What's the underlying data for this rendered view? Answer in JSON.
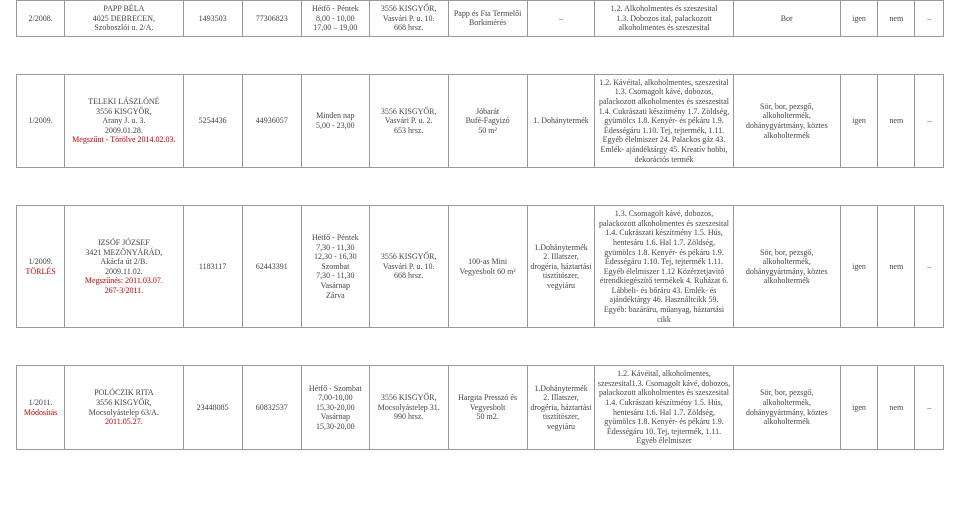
{
  "rows": [
    {
      "id": "2/2008.",
      "name": "PAPP BÉLA\n4025 DEBRECEN,\nSzoboszlói u. 2/A.",
      "n1": "1493503",
      "n2": "77306823",
      "hours": "Hétfő - Péntek\n8,00 - 10,00\n17,00 – 19,00",
      "loc": "3556 KISGYŐR,\nVasvári P. u. 10.\n668 hrsz.",
      "shop": "Papp és Fia Termelői\nBorkimérés",
      "prim": "–",
      "cat": "1.2. Alkoholmentes és szeszesital\n1.3. Dobozos ital, palackozott alkoholmentes és szeszesital",
      "prod": "Bor",
      "yn1": "igen",
      "yn2": "nem",
      "last": "–"
    },
    {
      "id": "1/2009.",
      "name_html": "TELEKI LÁSZLÓNÉ<br>3556 KISGYŐR,<br>Arany J. u. 3.<br>2009.01.28.<br><span class='red'>Megszűnt - Törölve 2014.02.03.</span>",
      "n1": "5254436",
      "n2": "44936057",
      "hours": "Minden nap\n5,00 - 23,00",
      "loc": "3556 KISGYŐR,\nVasvári P. u. 2.\n653 hrsz.",
      "shop": "Jóbarát\nBufé-Fagyizó\n50 m²",
      "prim": "1. Dohánytermék",
      "cat": "1.2. Kávéital, alkoholmentes, szeszesital 1.3. Csomagolt kávé, dobozos, palackozott alkoholmentes és szeszesital 1.4. Cukrászati készítmény 1.7. Zöldség, gyümölcs 1.8. Kenyér- és pékáru 1.9. Édességáru  1.10. Tej, tejtermék, 1.11. Egyéb élelmiszer  24. Palackos gáz  43. Emlék- ajándéktárgy  45. Kreatív hobbi, dekorációs termék",
      "prod": "Sör, bor, pezsgő, alkoholtermék, dohánygyártmány, köztes alkoholtermék",
      "yn1": "igen",
      "yn2": "nem",
      "last": "–"
    },
    {
      "id_html": "1/2009.<br><span class='red'>TÖRLÉS</span>",
      "name_html": "IZSÓF JÓZSEF<br>3421 MEZŐNYÁRÁD,<br>Akácfa út 2/B.<br>2009.11.02.<br><span class='red'>Megszűnés: 2011.03.07.<br>267-3/2011.</span>",
      "n1": "1183117",
      "n2": "62443391",
      "hours": "Hétfő - Péntek\n7,30 - 11,30\n12,30 - 16,30\nSzombat\n7,30 - 11,30\nVasárnap\nZárva",
      "loc": "3556 KISGYŐR,\nVasvári P. u. 10.\n668 hrsz.",
      "shop": "100-as Mini\nVegyesbolt         60 m²",
      "prim": "1.Dohánytermék\n2. Illatszer, drogéria, háztartási tisztítószer, vegyiáru",
      "cat": "1.3. Csomagolt kávé, dobozos, palackozott alkoholmentes és szeszesital 1.4. Cukrászati készítmény 1.5. Hús, hentesáru  1.6. Hal  1.7. Zöldség, gyümölcs 1.8. Kenyér- és pékáru 1.9. Édességáru 1.10. Tej, tejtermék 1.11. Egyéb élelmiszer 1.12 Közérzetjavító étrendkiegészítő termékek 4. Ruházat  6. Lábbeli- és bőráru 43. Emlék- és ajándéktárgy 46. Használtcikk 59. Egyéb: bazáráru, műanyag, háztartási cikk",
      "prod": "Sör, bor, pezsgő, alkoholtermék, dohánygyártmány, köztes alkoholtermék",
      "yn1": "igen",
      "yn2": "nem",
      "last": "–"
    },
    {
      "id_html": "1/2011.<br><span class='red'>Módosítás</span>",
      "name_html": "POLÓCZIK RITA<br>3556 KISGYŐR,<br>Mocsolyástelep 63/A.<br><span class='red'>2011.05.27.</span>",
      "n1": "23448085",
      "n2": "60832537",
      "hours": "Hétfő - Szombat\n7,00-10,00\n15,30-20,00\nVasárnap\n15,30-20,00",
      "loc": "3556 KISGYŐR,\nMocsolyástelep 31.\n990 hrsz.",
      "shop": "Hargita Presszó és\nVegyesbolt\n50 m2.",
      "prim": "1.Dohánytermék\n2. Illatszer, drogéria, háztartási tisztítószer, vegyiáru",
      "cat": "1.2. Kávéital, alkoholmentes, szeszesital1.3. Csomagolt kávé, dobozos, palackozott alkoholmentes és szeszesital 1.4. Cukrászati készítmény 1.5. Hús, hentesáru  1.6. Hal 1.7. Zöldség, gyümölcs 1.8. Kenyér- és pékáru 1.9. Édességáru  10. Tej, tejtermék,  1.11. Egyéb élelmiszer",
      "prod": "Sör, bor, pezsgő, alkoholtermék, dohánygyártmány, köztes alkoholtermék",
      "yn1": "igen",
      "yn2": "nem",
      "last": "–"
    }
  ]
}
